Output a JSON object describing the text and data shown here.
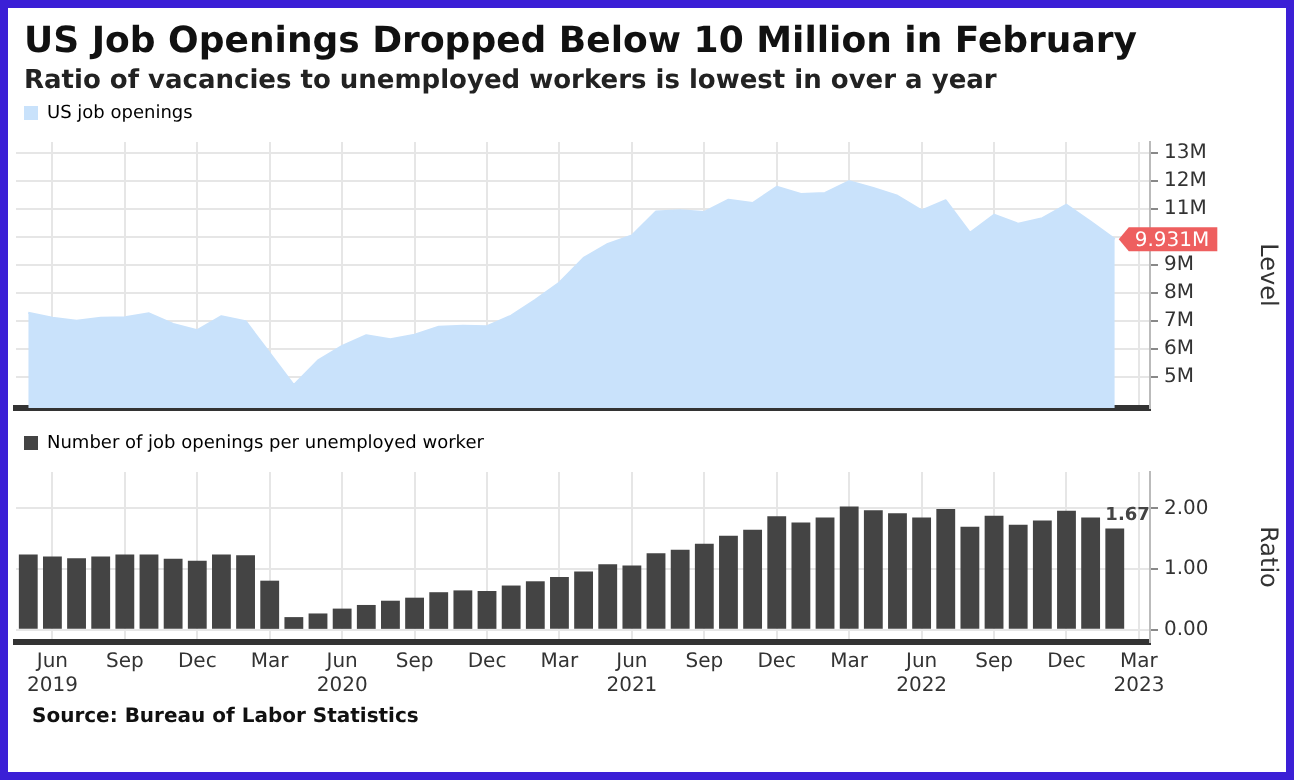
{
  "chart_data": [
    {
      "type": "area",
      "title": "US Job Openings Dropped Below 10 Million in February",
      "subtitle": "Ratio of vacancies to unemployed workers is lowest in over a year",
      "ylabel": "Level",
      "x": [
        "2019-05",
        "2019-06",
        "2019-07",
        "2019-08",
        "2019-09",
        "2019-10",
        "2019-11",
        "2019-12",
        "2020-01",
        "2020-02",
        "2020-03",
        "2020-04",
        "2020-05",
        "2020-06",
        "2020-07",
        "2020-08",
        "2020-09",
        "2020-10",
        "2020-11",
        "2020-12",
        "2021-01",
        "2021-02",
        "2021-03",
        "2021-04",
        "2021-05",
        "2021-06",
        "2021-07",
        "2021-08",
        "2021-09",
        "2021-10",
        "2021-11",
        "2021-12",
        "2022-01",
        "2022-02",
        "2022-03",
        "2022-04",
        "2022-05",
        "2022-06",
        "2022-07",
        "2022-08",
        "2022-09",
        "2022-10",
        "2022-11",
        "2022-12",
        "2023-01",
        "2023-02"
      ],
      "series": [
        {
          "name": "US job openings",
          "color": "#c9e2fb",
          "values": [
            7.3,
            7.12,
            7.02,
            7.12,
            7.14,
            7.28,
            6.9,
            6.68,
            7.18,
            7.0,
            5.86,
            4.72,
            5.6,
            6.12,
            6.5,
            6.36,
            6.52,
            6.8,
            6.84,
            6.82,
            7.2,
            7.76,
            8.38,
            9.26,
            9.76,
            10.06,
            10.92,
            10.96,
            10.9,
            11.34,
            11.22,
            11.8,
            11.54,
            11.58,
            12.0,
            11.76,
            11.48,
            10.96,
            11.32,
            10.16,
            10.8,
            10.48,
            10.68,
            11.16,
            10.56,
            9.931
          ],
          "value_labels": [
            null,
            null,
            null,
            null,
            null,
            null,
            null,
            null,
            null,
            null,
            null,
            null,
            null,
            null,
            null,
            null,
            null,
            null,
            null,
            null,
            null,
            null,
            null,
            null,
            null,
            null,
            null,
            null,
            null,
            null,
            null,
            null,
            null,
            null,
            null,
            null,
            null,
            null,
            null,
            null,
            null,
            null,
            null,
            null,
            null,
            "9.931M"
          ]
        }
      ],
      "xlim": [
        "2019-04-16",
        "2023-03-15"
      ],
      "xticks": [
        {
          "value": "2019-06",
          "label": null
        },
        {
          "value": "2019-09",
          "label": null
        },
        {
          "value": "2019-12",
          "label": null
        },
        {
          "value": "2020-03",
          "label": null
        },
        {
          "value": "2020-06",
          "label": null
        },
        {
          "value": "2020-09",
          "label": null
        },
        {
          "value": "2020-12",
          "label": null
        },
        {
          "value": "2021-03",
          "label": null
        },
        {
          "value": "2021-06",
          "label": null
        },
        {
          "value": "2021-09",
          "label": null
        },
        {
          "value": "2021-12",
          "label": null
        },
        {
          "value": "2022-03",
          "label": null
        },
        {
          "value": "2022-06",
          "label": null
        },
        {
          "value": "2022-09",
          "label": null
        },
        {
          "value": "2022-12",
          "label": null
        },
        {
          "value": "2023-03",
          "label": null
        }
      ],
      "ylim": [
        3.9,
        13.4
      ],
      "yticks": [
        {
          "value": 5,
          "label": "5M"
        },
        {
          "value": 6,
          "label": "6M"
        },
        {
          "value": 7,
          "label": "7M"
        },
        {
          "value": 8,
          "label": "8M"
        },
        {
          "value": 9,
          "label": "9M"
        },
        {
          "value": 10,
          "label": null
        },
        {
          "value": 11,
          "label": "11M"
        },
        {
          "value": 12,
          "label": "12M"
        },
        {
          "value": 13,
          "label": "13M"
        }
      ],
      "grid": true,
      "legend": "top left",
      "tick_labels": "y"
    },
    {
      "type": "bar",
      "ylabel": "Ratio",
      "annotations": [
        "Source: Bureau of Labor Statistics"
      ],
      "x": [
        "2019-05",
        "2019-06",
        "2019-07",
        "2019-08",
        "2019-09",
        "2019-10",
        "2019-11",
        "2019-12",
        "2020-01",
        "2020-02",
        "2020-03",
        "2020-04",
        "2020-05",
        "2020-06",
        "2020-07",
        "2020-08",
        "2020-09",
        "2020-10",
        "2020-11",
        "2020-12",
        "2021-01",
        "2021-02",
        "2021-03",
        "2021-04",
        "2021-05",
        "2021-06",
        "2021-07",
        "2021-08",
        "2021-09",
        "2021-10",
        "2021-11",
        "2021-12",
        "2022-01",
        "2022-02",
        "2022-03",
        "2022-04",
        "2022-05",
        "2022-06",
        "2022-07",
        "2022-08",
        "2022-09",
        "2022-10",
        "2022-11",
        "2022-12",
        "2023-01",
        "2023-02"
      ],
      "series": [
        {
          "name": "Number of job openings per unemployed worker",
          "color": "#444444",
          "values": [
            1.24,
            1.21,
            1.18,
            1.21,
            1.24,
            1.24,
            1.17,
            1.14,
            1.24,
            1.23,
            0.81,
            0.21,
            0.27,
            0.35,
            0.41,
            0.48,
            0.53,
            0.62,
            0.65,
            0.64,
            0.73,
            0.8,
            0.87,
            0.96,
            1.08,
            1.06,
            1.26,
            1.32,
            1.42,
            1.55,
            1.65,
            1.87,
            1.77,
            1.85,
            2.03,
            1.97,
            1.92,
            1.85,
            1.99,
            1.7,
            1.88,
            1.73,
            1.8,
            1.96,
            1.85,
            1.67
          ],
          "value_labels": [
            null,
            null,
            null,
            null,
            null,
            null,
            null,
            null,
            null,
            null,
            null,
            null,
            null,
            null,
            null,
            null,
            null,
            null,
            null,
            null,
            null,
            null,
            null,
            null,
            null,
            null,
            null,
            null,
            null,
            null,
            null,
            null,
            null,
            null,
            null,
            null,
            null,
            null,
            null,
            null,
            null,
            null,
            null,
            null,
            null,
            "1.67"
          ]
        }
      ],
      "xlim": [
        "2019-04-16",
        "2023-03-15"
      ],
      "xticks": [
        {
          "value": "2019-06",
          "label": "Jun\n2019"
        },
        {
          "value": "2019-09",
          "label": "Sep"
        },
        {
          "value": "2019-12",
          "label": "Dec"
        },
        {
          "value": "2020-03",
          "label": "Mar"
        },
        {
          "value": "2020-06",
          "label": "Jun\n2020"
        },
        {
          "value": "2020-09",
          "label": "Sep"
        },
        {
          "value": "2020-12",
          "label": "Dec"
        },
        {
          "value": "2021-03",
          "label": "Mar"
        },
        {
          "value": "2021-06",
          "label": "Jun\n2021"
        },
        {
          "value": "2021-09",
          "label": "Sep"
        },
        {
          "value": "2021-12",
          "label": "Dec"
        },
        {
          "value": "2022-03",
          "label": "Mar"
        },
        {
          "value": "2022-06",
          "label": "Jun\n2022"
        },
        {
          "value": "2022-09",
          "label": "Sep"
        },
        {
          "value": "2022-12",
          "label": "Dec"
        },
        {
          "value": "2023-03",
          "label": "Mar\n2023"
        }
      ],
      "ylim": [
        -0.2,
        2.6
      ],
      "yticks": [
        {
          "value": 0,
          "label": "0.00"
        },
        {
          "value": 1,
          "label": "1.00"
        },
        {
          "value": 2,
          "label": "2.00"
        }
      ],
      "grid": true,
      "legend": "top left"
    }
  ]
}
